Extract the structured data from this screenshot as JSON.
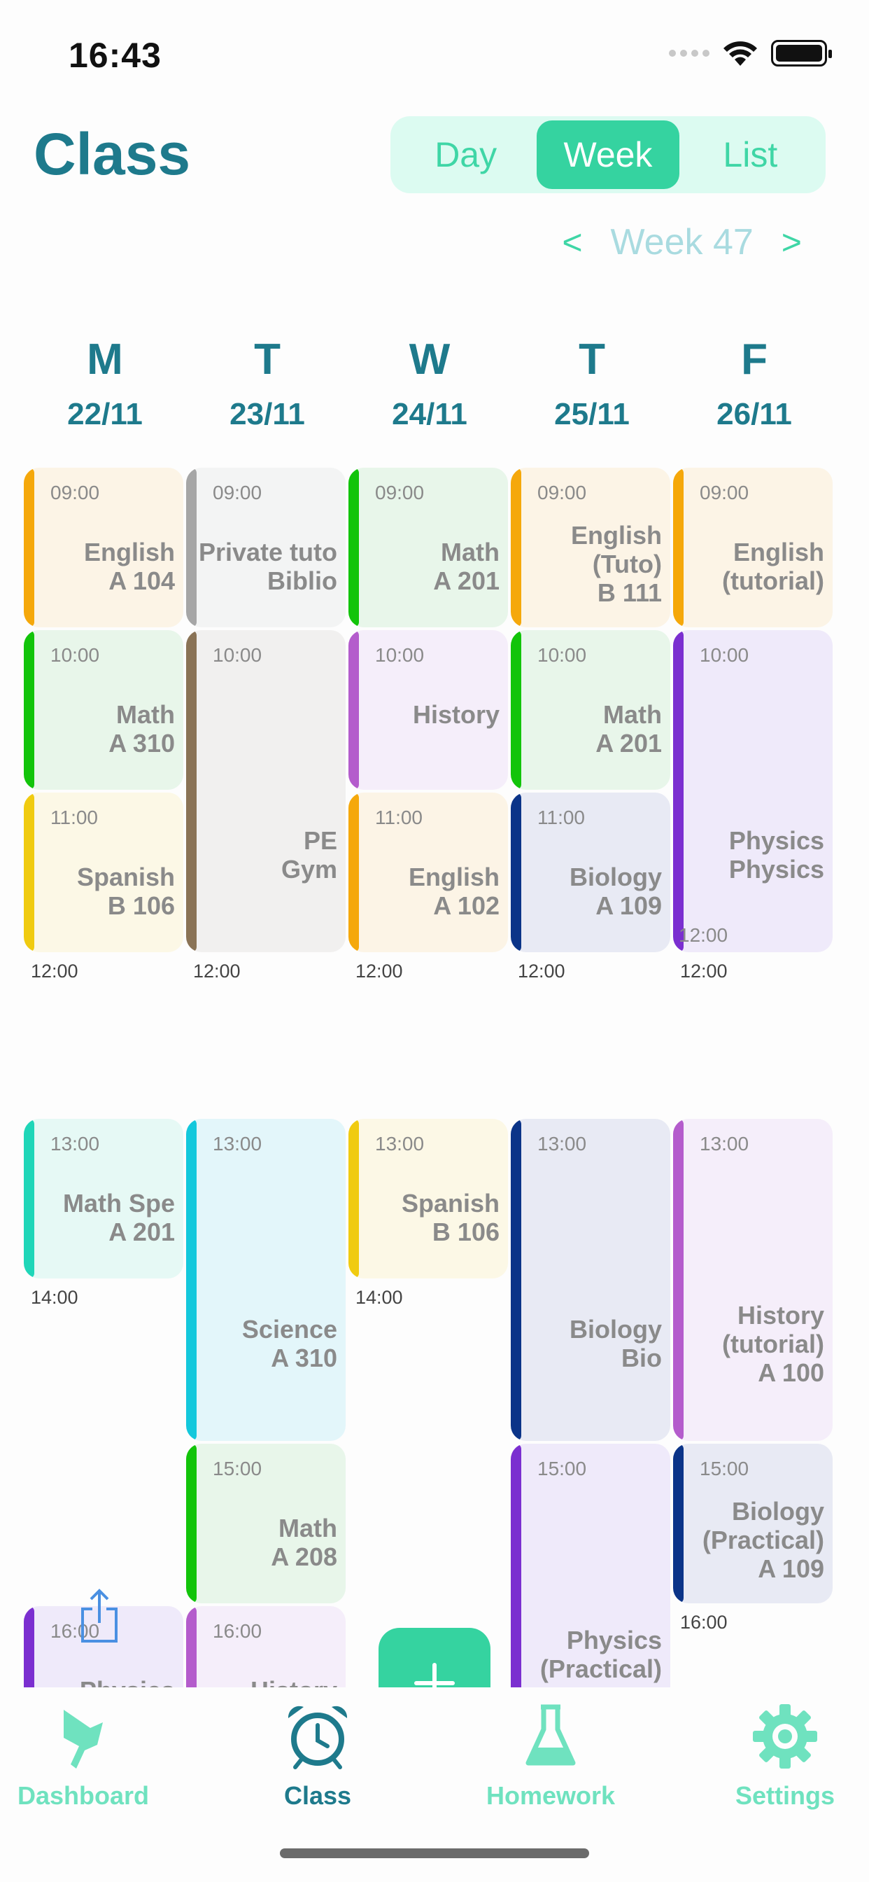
{
  "status_bar": {
    "time": "16:43"
  },
  "header": {
    "title": "Class",
    "segments": [
      "Day",
      "Week",
      "List"
    ],
    "active_segment": "Week",
    "week_label": "Week 47",
    "prev": "<",
    "next": ">"
  },
  "days": [
    {
      "letter": "M",
      "date": "22/11"
    },
    {
      "letter": "T",
      "date": "23/11"
    },
    {
      "letter": "W",
      "date": "24/11"
    },
    {
      "letter": "T",
      "date": "25/11"
    },
    {
      "letter": "F",
      "date": "26/11"
    }
  ],
  "events": [
    {
      "day": 0,
      "start": "09:00",
      "title": "English\nA 104",
      "color": "#f5a80b",
      "bg": "#fcf4e6"
    },
    {
      "day": 0,
      "start": "10:00",
      "title": "Math\nA 310",
      "color": "#12c40a",
      "bg": "#e8f6ea"
    },
    {
      "day": 0,
      "start": "11:00",
      "end": "12:00",
      "title": "Spanish\nB 106",
      "color": "#f0cb10",
      "bg": "#fcf8e6"
    },
    {
      "day": 0,
      "start": "13:00",
      "end": "14:00",
      "title": "Math Spe\nA 201",
      "color": "#1fd6b8",
      "bg": "#e6f9f5"
    },
    {
      "day": 0,
      "start": "16:00",
      "title": "Physics",
      "color": "#7b2fd0",
      "bg": "#efeafa"
    },
    {
      "day": 1,
      "start": "09:00",
      "title": "Private tuto\nBiblio",
      "color": "#a6a6a6",
      "bg": "#f3f4f4"
    },
    {
      "day": 1,
      "start": "10:00",
      "end": "12:00",
      "title": "PE\nGym",
      "color": "#8a7356",
      "bg": "#f1f0ef"
    },
    {
      "day": 1,
      "start": "13:00",
      "title": "Science\nA 310",
      "color": "#13c8dc",
      "bg": "#e3f6fa"
    },
    {
      "day": 1,
      "start": "15:00",
      "title": "Math\nA 208",
      "color": "#12c40a",
      "bg": "#e8f6ea"
    },
    {
      "day": 1,
      "start": "16:00",
      "title": "History",
      "color": "#b45ccc",
      "bg": "#f5eefa"
    },
    {
      "day": 2,
      "start": "09:00",
      "title": "Math\nA 201",
      "color": "#12c40a",
      "bg": "#e8f6ea"
    },
    {
      "day": 2,
      "start": "10:00",
      "title": "History",
      "color": "#b45ccc",
      "bg": "#f5eefa"
    },
    {
      "day": 2,
      "start": "11:00",
      "end": "12:00",
      "title": "English\nA 102",
      "color": "#f5a80b",
      "bg": "#fcf4e6"
    },
    {
      "day": 2,
      "start": "13:00",
      "end": "14:00",
      "title": "Spanish\nB 106",
      "color": "#f0cb10",
      "bg": "#fcf8e6"
    },
    {
      "day": 3,
      "start": "09:00",
      "title": "English\n(Tuto)\nB 111",
      "color": "#f5a80b",
      "bg": "#fcf4e6"
    },
    {
      "day": 3,
      "start": "10:00",
      "title": "Math\nA 201",
      "color": "#12c40a",
      "bg": "#e8f6ea"
    },
    {
      "day": 3,
      "start": "11:00",
      "end": "12:00",
      "title": "Biology\nA 109",
      "color": "#0b3488",
      "bg": "#e8eaf4"
    },
    {
      "day": 3,
      "start": "13:00",
      "title": "Biology\nBio",
      "color": "#0b3488",
      "bg": "#e8eaf4"
    },
    {
      "day": 3,
      "start": "15:00",
      "title": "Physics\n(Practical)\nSalle",
      "color": "#7b2fd0",
      "bg": "#efeafa"
    },
    {
      "day": 4,
      "start": "09:00",
      "title": "English\n(tutorial)",
      "color": "#f5a80b",
      "bg": "#fcf4e6"
    },
    {
      "day": 4,
      "start": "10:00",
      "end": "12:00",
      "inner_end": "12:00",
      "title": "Physics\nPhysics",
      "color": "#7b2fd0",
      "bg": "#efeafa"
    },
    {
      "day": 4,
      "start": "13:00",
      "title": "History\n(tutorial)\nA 100",
      "color": "#b45ccc",
      "bg": "#f5eefa"
    },
    {
      "day": 4,
      "start": "15:00",
      "end": "16:00",
      "title": "Biology\n(Practical)\nA 109",
      "color": "#0b3488",
      "bg": "#e8eaf4"
    }
  ],
  "tabs": [
    {
      "label": "Dashboard",
      "icon": "flag-icon"
    },
    {
      "label": "Class",
      "icon": "alarm-clock-icon",
      "active": true
    },
    {
      "label": "Homework",
      "icon": "flask-icon"
    },
    {
      "label": "Settings",
      "icon": "gear-icon"
    }
  ],
  "colors": {
    "accent": "#35d3a0",
    "title": "#1e7a8c"
  }
}
